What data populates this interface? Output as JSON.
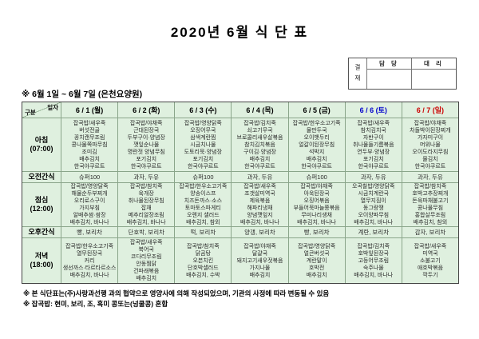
{
  "title": "2020년 6월 식 단 표",
  "approval": {
    "stamp_label": "결 재",
    "columns": [
      "담 당",
      "대 리"
    ]
  },
  "subtitle": "※ 6월 1일 ~ 6월 7일 (은천요양원)",
  "colors": {
    "table_bg": "#dff0df",
    "saturday": "#0000cc",
    "sunday": "#cc0000",
    "weekday": "#000000"
  },
  "menu": {
    "corner_top": "일자",
    "corner_bottom": "구분",
    "days": [
      {
        "label": "6 / 1 (월)",
        "color": "#000000"
      },
      {
        "label": "6 / 2 (화)",
        "color": "#000000"
      },
      {
        "label": "6 / 3 (수)",
        "color": "#000000"
      },
      {
        "label": "6 / 4 (목)",
        "color": "#000000"
      },
      {
        "label": "6 / 5 (금)",
        "color": "#000000"
      },
      {
        "label": "6 / 6 (토)",
        "color": "#0000cc"
      },
      {
        "label": "6 / 7 (일)",
        "color": "#cc0000"
      }
    ],
    "rows": [
      {
        "label": "아침",
        "sub": "(07:00)",
        "kind": "meal",
        "cells": [
          [
            "잡곡밥/새우죽",
            "버섯전골",
            "꽁치캔무조림",
            "콩나물쪽파무침",
            "조미김",
            "배추김치",
            "한국야쿠르트"
          ],
          [
            "잡곡밥/야채죽",
            "근대된장국",
            "두부구이·양념장",
            "깻잎순나물",
            "명란젓 양념무침",
            "포기김치",
            "한국야쿠르트"
          ],
          [
            "잡곡밥/영양닭죽",
            "오징어무국",
            "삼색계란찜",
            "시금치나물",
            "도토리묵·양념장",
            "포기김치",
            "한국야쿠르트"
          ],
          [
            "잡곡밥/김치죽",
            "쇠고기무국",
            "브로콜리새우살볶음",
            "참치김치볶음",
            "구이김·양념장",
            "배추김치",
            "한국야쿠르트"
          ],
          [
            "잡곡밥/한우소고기죽",
            "물만두국",
            "오이뱃두리",
            "얼갈이된장무침",
            "석박지",
            "배추김치",
            "한국야쿠르트"
          ],
          [
            "잡곡밥/새우죽",
            "참치김치국",
            "자반구이",
            "취나물들기름볶음",
            "연두부·양념장",
            "포기김치",
            "한국야쿠르트"
          ],
          [
            "잡곡밥/야채죽",
            "차돌박이된장찌개",
            "가자미구이",
            "머위나물",
            "오이도라지무침",
            "물김치",
            "한국야쿠르트"
          ]
        ]
      },
      {
        "label": "오전간식",
        "sub": "",
        "kind": "snack",
        "cells": [
          [
            "슈퍼100"
          ],
          [
            "과자, 두유"
          ],
          [
            "슈퍼100"
          ],
          [
            "과자, 두유"
          ],
          [
            "슈퍼100"
          ],
          [
            "과자, 두유"
          ],
          [
            "과자, 두유"
          ]
        ]
      },
      {
        "label": "점심",
        "sub": "(12:00)",
        "kind": "meal",
        "cells": [
          [
            "잡곡밥/영양닭죽",
            "해물순두부찌개",
            "오리로스구이",
            "가지부침",
            "알배추쌈·쌈장",
            "배추김치, 바나나"
          ],
          [
            "잡곡밥/참치죽",
            "육개장",
            "취나물된장무침",
            "잡채",
            "메추리알장조림",
            "배추김치, 바나나"
          ],
          [
            "잡곡밥/한우소고기죽",
            "양송이스프",
            "치즈돈까스·소스",
            "토마토스파게티",
            "오렌지 샐러드",
            "배추김치, 참외"
          ],
          [
            "잡곡밥/새우죽",
            "조갯살미역국",
            "제육볶음",
            "해파리냉채",
            "양념깻잎지",
            "배추김치, 바나나"
          ],
          [
            "잡곡밥/야채죽",
            "아욱된장국",
            "오징어볶음",
            "부들어묵마늘쫑볶음",
            "무미나리생채",
            "배추김치, 바나나"
          ],
          [
            "오곡찰밥/영양닭죽",
            "시금치계란국",
            "열무지짐이",
            "동그랑땡",
            "오이양파무침",
            "배추김치, 바나나"
          ],
          [
            "잡곡밥/참치죽",
            "호박고추장찌개",
            "돈육파채불고기",
            "콩나물무침",
            "홍합살무조림",
            "배추김치, 참외"
          ]
        ]
      },
      {
        "label": "오후간식",
        "sub": "",
        "kind": "snack",
        "cells": [
          [
            "빵, 보리차"
          ],
          [
            "단호박, 보리차"
          ],
          [
            "떡, 보리차"
          ],
          [
            "양갱, 보리차"
          ],
          [
            "빵, 보리차"
          ],
          [
            "계란, 보리차"
          ],
          [
            "감자, 보리차"
          ]
        ]
      },
      {
        "label": "저녁",
        "sub": "(18:00)",
        "kind": "meal",
        "cells": [
          [
            "잡곡밥/한우소고기죽",
            "열무된장국",
            "커리",
            "생선까스·타르타르소스",
            "배추김치, 바나나"
          ],
          [
            "잡곡밥/새우죽",
            "북어국",
            "코다리무조림",
            "안동찜닭",
            "건파래볶음",
            "배추김치"
          ],
          [
            "잡곡밥/참치죽",
            "닭곰탕",
            "오븐치킨",
            "단호박샐러드",
            "배추김치, 수박"
          ],
          [
            "잡곡밥/야채죽",
            "달걀국",
            "돼지고기새우젓볶음",
            "가지나물",
            "배추김치"
          ],
          [
            "잡곡밥/영양닭죽",
            "얼큰버섯국",
            "계란말이",
            "호박전",
            "배추김치"
          ],
          [
            "잡곡밥/김치죽",
            "호박잎된장국",
            "고등어무조림",
            "숙주나물",
            "배추김치, 바나나"
          ],
          [
            "잡곡밥/새우죽",
            "미역국",
            "소불고기",
            "애호박볶음",
            "깍두기"
          ]
        ]
      }
    ]
  },
  "notes": [
    "※ 본 식단표는(주)사랑과선행 과의 협약으로 영양사에 의해 작성되었으며, 기관의 사정에 따라 변동될 수 있음",
    "※ 잡곡밥: 현미, 보리, 조, 흑미 콩또는(넝쿨콩) 혼합"
  ]
}
